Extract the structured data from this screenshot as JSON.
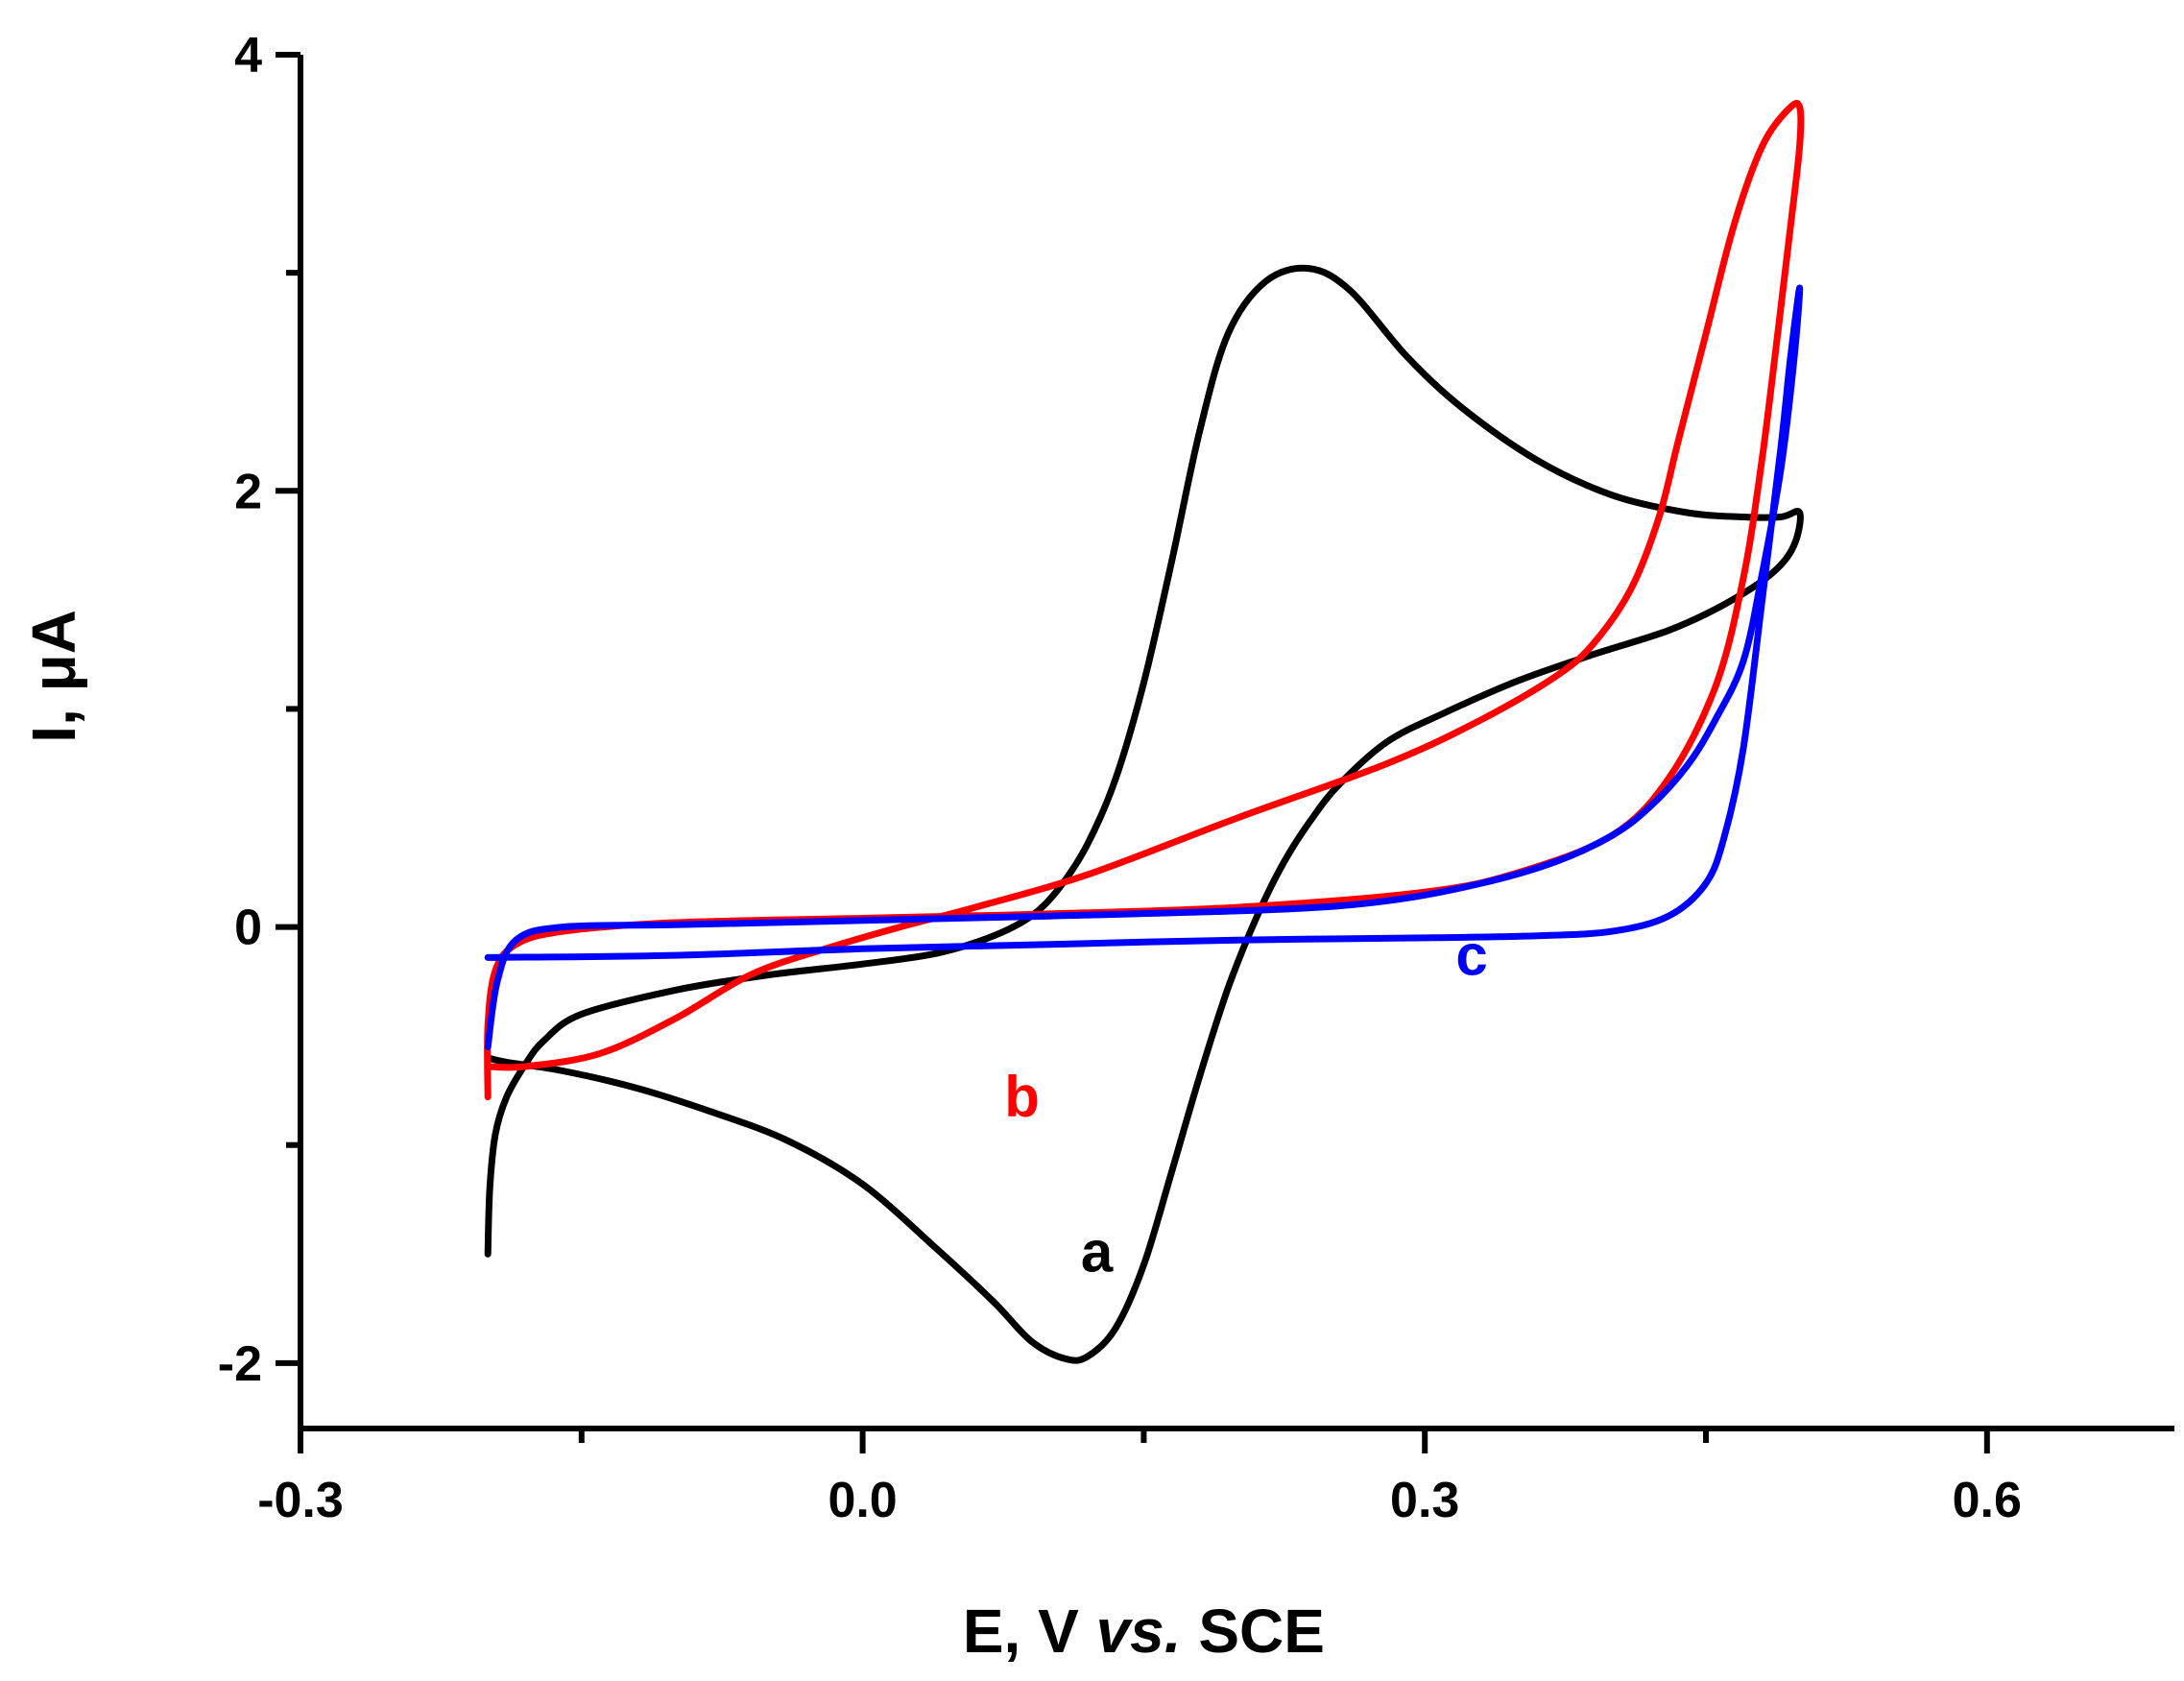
{
  "chart_data": {
    "type": "line",
    "title": "",
    "xlabel": {
      "prefix": "E, V ",
      "italic": "vs.",
      "suffix": " SCE"
    },
    "ylabel": "I, μA",
    "xlim": [
      -0.3,
      0.7
    ],
    "ylim": [
      -2.3,
      4
    ],
    "x_ticks": [
      -0.3,
      0.0,
      0.3,
      0.6
    ],
    "x_tick_labels": [
      "-0.3",
      "0.0",
      "0.3",
      "0.6"
    ],
    "x_minor_ticks": [
      -0.15,
      0.15,
      0.45
    ],
    "y_ticks": [
      -2,
      0,
      2,
      4
    ],
    "y_tick_labels": [
      "-2",
      "0",
      "2",
      "4"
    ],
    "y_minor_ticks": [
      -1,
      1,
      3
    ],
    "grid": false,
    "series": [
      {
        "name": "a",
        "color": "#000000",
        "label": "a",
        "label_pos": [
          0.125,
          -1.58
        ],
        "points": [
          [
            -0.2,
            -1.5
          ],
          [
            -0.199,
            -1.2
          ],
          [
            -0.196,
            -0.95
          ],
          [
            -0.19,
            -0.78
          ],
          [
            -0.18,
            -0.63
          ],
          [
            -0.17,
            -0.52
          ],
          [
            -0.15,
            -0.4
          ],
          [
            -0.1,
            -0.29
          ],
          [
            -0.05,
            -0.22
          ],
          [
            0.0,
            -0.17
          ],
          [
            0.04,
            -0.12
          ],
          [
            0.07,
            -0.04
          ],
          [
            0.09,
            0.05
          ],
          [
            0.105,
            0.18
          ],
          [
            0.12,
            0.38
          ],
          [
            0.135,
            0.68
          ],
          [
            0.15,
            1.12
          ],
          [
            0.165,
            1.68
          ],
          [
            0.18,
            2.28
          ],
          [
            0.195,
            2.72
          ],
          [
            0.215,
            2.96
          ],
          [
            0.238,
            3.02
          ],
          [
            0.26,
            2.92
          ],
          [
            0.29,
            2.62
          ],
          [
            0.32,
            2.38
          ],
          [
            0.36,
            2.14
          ],
          [
            0.4,
            1.98
          ],
          [
            0.44,
            1.9
          ],
          [
            0.47,
            1.88
          ],
          [
            0.49,
            1.88
          ],
          [
            0.5,
            1.9
          ],
          [
            0.497,
            1.75
          ],
          [
            0.485,
            1.62
          ],
          [
            0.46,
            1.48
          ],
          [
            0.43,
            1.36
          ],
          [
            0.39,
            1.25
          ],
          [
            0.35,
            1.13
          ],
          [
            0.31,
            0.98
          ],
          [
            0.28,
            0.85
          ],
          [
            0.255,
            0.66
          ],
          [
            0.24,
            0.5
          ],
          [
            0.225,
            0.3
          ],
          [
            0.21,
            0.04
          ],
          [
            0.195,
            -0.28
          ],
          [
            0.18,
            -0.68
          ],
          [
            0.165,
            -1.12
          ],
          [
            0.15,
            -1.55
          ],
          [
            0.135,
            -1.84
          ],
          [
            0.12,
            -1.97
          ],
          [
            0.108,
            -1.98
          ],
          [
            0.09,
            -1.9
          ],
          [
            0.07,
            -1.72
          ],
          [
            0.04,
            -1.48
          ],
          [
            0.0,
            -1.18
          ],
          [
            -0.04,
            -0.98
          ],
          [
            -0.08,
            -0.85
          ],
          [
            -0.12,
            -0.74
          ],
          [
            -0.16,
            -0.66
          ],
          [
            -0.19,
            -0.62
          ],
          [
            -0.2,
            -0.6
          ]
        ]
      },
      {
        "name": "b",
        "color": "#ff0000",
        "label": "b",
        "label_pos": [
          0.085,
          -0.87
        ],
        "points": [
          [
            -0.2,
            -0.78
          ],
          [
            -0.2,
            -0.45
          ],
          [
            -0.196,
            -0.2
          ],
          [
            -0.185,
            -0.08
          ],
          [
            -0.16,
            -0.02
          ],
          [
            -0.1,
            0.02
          ],
          [
            0.0,
            0.04
          ],
          [
            0.05,
            0.05
          ],
          [
            0.1,
            0.06
          ],
          [
            0.2,
            0.09
          ],
          [
            0.3,
            0.16
          ],
          [
            0.35,
            0.25
          ],
          [
            0.4,
            0.42
          ],
          [
            0.43,
            0.68
          ],
          [
            0.455,
            1.1
          ],
          [
            0.47,
            1.6
          ],
          [
            0.48,
            2.15
          ],
          [
            0.488,
            2.7
          ],
          [
            0.495,
            3.2
          ],
          [
            0.5,
            3.58
          ],
          [
            0.5,
            3.76
          ],
          [
            0.494,
            3.75
          ],
          [
            0.48,
            3.58
          ],
          [
            0.465,
            3.22
          ],
          [
            0.45,
            2.72
          ],
          [
            0.435,
            2.22
          ],
          [
            0.425,
            1.88
          ],
          [
            0.41,
            1.55
          ],
          [
            0.39,
            1.3
          ],
          [
            0.37,
            1.15
          ],
          [
            0.33,
            0.95
          ],
          [
            0.28,
            0.75
          ],
          [
            0.2,
            0.5
          ],
          [
            0.12,
            0.24
          ],
          [
            0.06,
            0.09
          ],
          [
            0.02,
            0.0
          ],
          [
            -0.02,
            -0.1
          ],
          [
            -0.06,
            -0.22
          ],
          [
            -0.1,
            -0.42
          ],
          [
            -0.14,
            -0.58
          ],
          [
            -0.18,
            -0.64
          ],
          [
            -0.2,
            -0.64
          ]
        ]
      },
      {
        "name": "c",
        "color": "#0000ff",
        "label": "c",
        "label_pos": [
          0.325,
          -0.22
        ],
        "points": [
          [
            -0.2,
            -0.14
          ],
          [
            -0.1,
            -0.13
          ],
          [
            0.0,
            -0.1
          ],
          [
            0.1,
            -0.08
          ],
          [
            0.2,
            -0.06
          ],
          [
            0.3,
            -0.05
          ],
          [
            0.36,
            -0.04
          ],
          [
            0.4,
            -0.02
          ],
          [
            0.43,
            0.05
          ],
          [
            0.45,
            0.2
          ],
          [
            0.46,
            0.42
          ],
          [
            0.47,
            0.82
          ],
          [
            0.48,
            1.5
          ],
          [
            0.49,
            2.2
          ],
          [
            0.495,
            2.6
          ],
          [
            0.5,
            2.93
          ],
          [
            0.497,
            2.6
          ],
          [
            0.49,
            2.1
          ],
          [
            0.48,
            1.62
          ],
          [
            0.47,
            1.22
          ],
          [
            0.455,
            0.95
          ],
          [
            0.44,
            0.74
          ],
          [
            0.42,
            0.55
          ],
          [
            0.4,
            0.42
          ],
          [
            0.37,
            0.3
          ],
          [
            0.33,
            0.2
          ],
          [
            0.28,
            0.12
          ],
          [
            0.22,
            0.08
          ],
          [
            0.1,
            0.05
          ],
          [
            0.0,
            0.03
          ],
          [
            -0.1,
            0.01
          ],
          [
            -0.16,
            0.0
          ],
          [
            -0.185,
            -0.06
          ],
          [
            -0.195,
            -0.25
          ],
          [
            -0.2,
            -0.55
          ]
        ]
      }
    ]
  }
}
